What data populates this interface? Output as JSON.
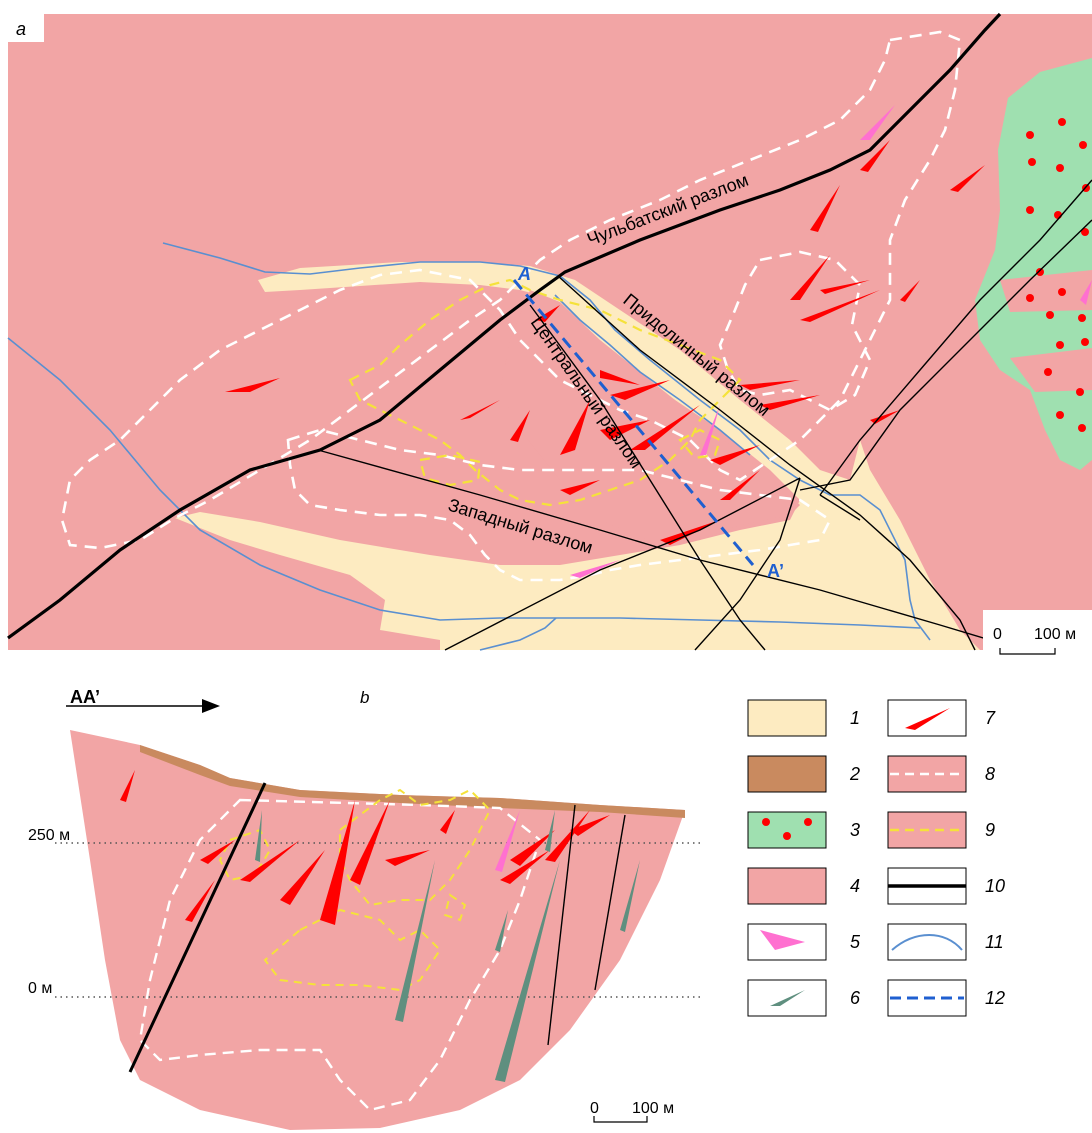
{
  "panel_a": {
    "label": "a",
    "faults": {
      "chulbat": "Чульбатский разлом",
      "pridolinny": "Придолинный разлом",
      "central": "Центральный разлом",
      "western": "Западный разлом"
    },
    "section_start": "A",
    "section_end": "A’",
    "scale_zero": "0",
    "scale_value": "100 м"
  },
  "panel_b": {
    "label": "b",
    "section_name": "AA’",
    "level_250": "250 м",
    "level_0": "0 м",
    "scale_zero": "0",
    "scale_value": "100 м"
  },
  "legend": {
    "items": [
      {
        "num": "1",
        "symbol": "alluvium-fill"
      },
      {
        "num": "2",
        "symbol": "brown-fill"
      },
      {
        "num": "3",
        "symbol": "green-dotted-fill"
      },
      {
        "num": "4",
        "symbol": "pink-fill"
      },
      {
        "num": "5",
        "symbol": "magenta-lens"
      },
      {
        "num": "6",
        "symbol": "dark-green-lens"
      },
      {
        "num": "7",
        "symbol": "red-lens"
      },
      {
        "num": "8",
        "symbol": "white-dashed-line"
      },
      {
        "num": "9",
        "symbol": "yellow-dashed-line"
      },
      {
        "num": "10",
        "symbol": "thick-black-line"
      },
      {
        "num": "11",
        "symbol": "blue-line"
      },
      {
        "num": "12",
        "symbol": "blue-dashed-line"
      }
    ]
  },
  "colors": {
    "granite": "#f2a5a5",
    "alluvium": "#fdebc1",
    "soil": "#c98a5f",
    "green_unit": "#9fe0b0",
    "red": "#ff0000",
    "magenta": "#ff70d0",
    "dark_green": "#5f8f7f",
    "blue": "#1f5fd0",
    "river": "#5a8fd0",
    "yellow": "#f5e23a"
  }
}
